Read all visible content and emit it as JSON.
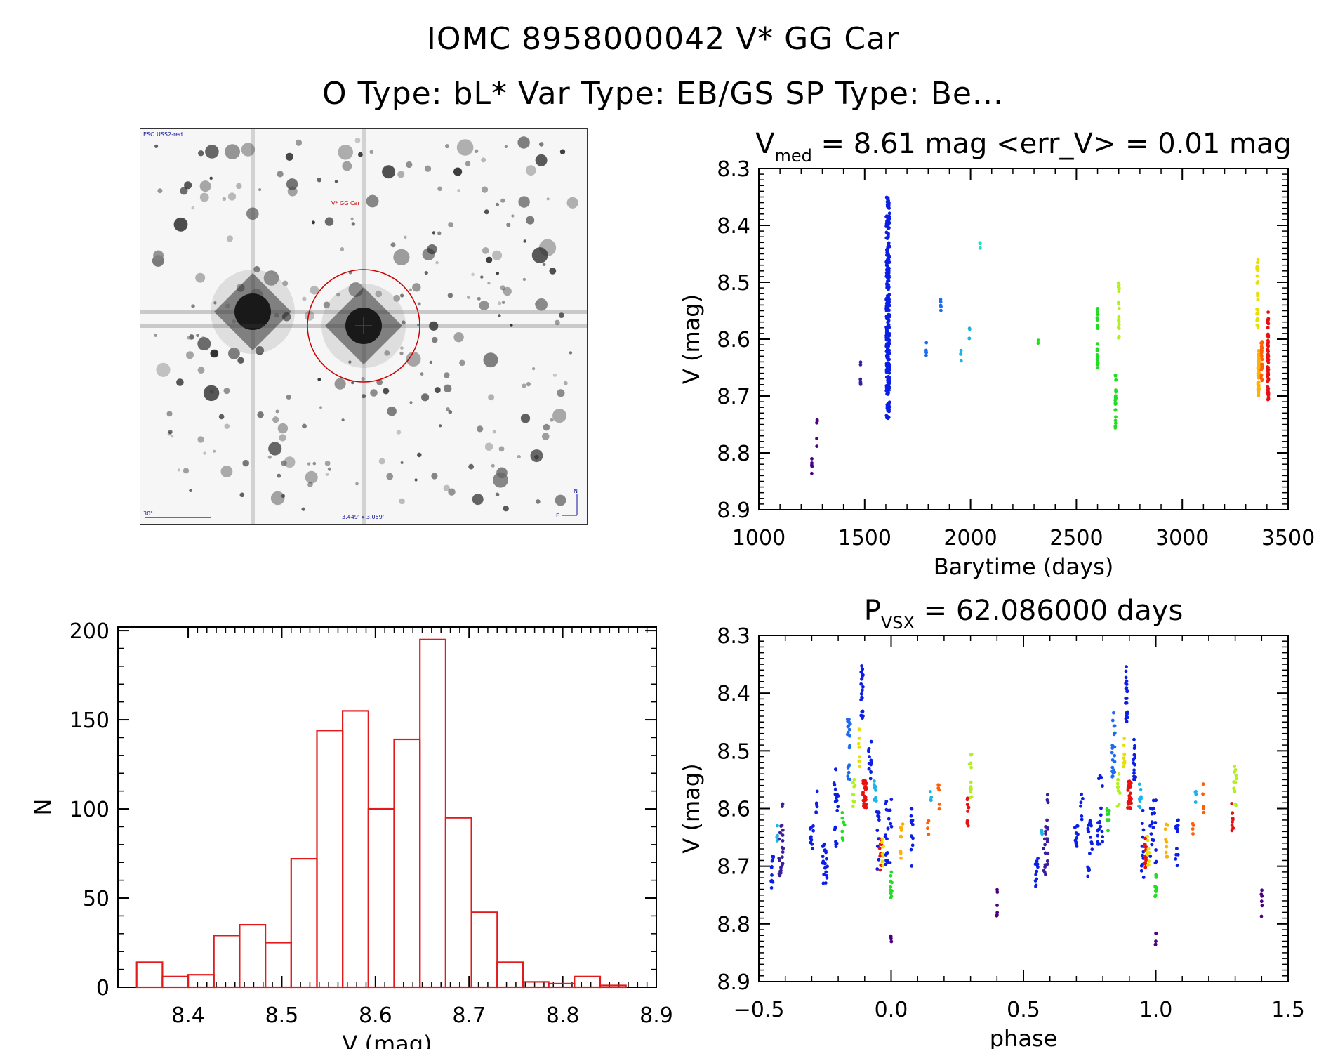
{
  "header": {
    "title_line1": "IOMC 8958000042   V* GG Car",
    "title_line2": "O Type: bL*  Var Type: EB/GS  SP Type: Be..."
  },
  "image_panel": {
    "survey_label": "ESO USS2-red",
    "target_label": "V* GG Car",
    "scale_label": "30\"",
    "fov_label": "3.449' x 3.059'",
    "north_label": "N",
    "east_label": "E",
    "circle_color": "#cc0000",
    "crosshair_color": "#aa00aa"
  },
  "colors": {
    "histogram": "#e31a1c",
    "axes": "#000000",
    "point_palette": [
      "#4b0082",
      "#3b1e9e",
      "#0a1ee6",
      "#1d6cf0",
      "#19b4e8",
      "#20e0c0",
      "#22dd22",
      "#b4f01e",
      "#e8e000",
      "#ffb000",
      "#ff6000",
      "#e81010"
    ]
  },
  "chart_data": [
    {
      "id": "lightcurve",
      "type": "scatter",
      "title_main": "V",
      "title_sub": "med",
      "title_rest": " = 8.61 mag <err_V> = 0.01 mag",
      "xlabel": "Barytime (days)",
      "ylabel": "V (mag)",
      "xlim": [
        1000,
        3500
      ],
      "ylim": [
        8.3,
        8.9
      ],
      "y_inverted": true,
      "xticks": [
        1000,
        1500,
        2000,
        2500,
        3000,
        3500
      ],
      "xtick_labels": [
        "1000",
        "1500",
        "2000",
        "2500",
        "3000",
        "3500"
      ],
      "yticks": [
        8.3,
        8.4,
        8.5,
        8.6,
        8.7,
        8.8,
        8.9
      ],
      "ytick_labels": [
        "8.3",
        "8.4",
        "8.5",
        "8.6",
        "8.7",
        "8.8",
        "8.9"
      ],
      "groups": [
        {
          "x": 1250,
          "y_range": [
            8.81,
            8.84
          ],
          "n": 5,
          "color": 0,
          "spread": 3
        },
        {
          "x": 1275,
          "y_range": [
            8.74,
            8.79
          ],
          "n": 6,
          "color": 0,
          "spread": 3
        },
        {
          "x": 1480,
          "y_range": [
            8.64,
            8.68
          ],
          "n": 6,
          "color": 1,
          "spread": 3
        },
        {
          "x": 1610,
          "y_range": [
            8.35,
            8.74
          ],
          "n": 260,
          "color": 2,
          "spread": 16
        },
        {
          "x": 1790,
          "y_range": [
            8.6,
            8.63
          ],
          "n": 5,
          "color": 3,
          "spread": 3
        },
        {
          "x": 1860,
          "y_range": [
            8.53,
            8.55
          ],
          "n": 5,
          "color": 3,
          "spread": 3
        },
        {
          "x": 1955,
          "y_range": [
            8.62,
            8.64
          ],
          "n": 4,
          "color": 4,
          "spread": 3
        },
        {
          "x": 1995,
          "y_range": [
            8.57,
            8.6
          ],
          "n": 4,
          "color": 4,
          "spread": 3
        },
        {
          "x": 2045,
          "y_range": [
            8.43,
            8.44
          ],
          "n": 3,
          "color": 5,
          "spread": 2
        },
        {
          "x": 2320,
          "y_range": [
            8.6,
            8.61
          ],
          "n": 2,
          "color": 6,
          "spread": 2
        },
        {
          "x": 2600,
          "y_range": [
            8.54,
            8.65
          ],
          "n": 24,
          "color": 6,
          "spread": 4
        },
        {
          "x": 2685,
          "y_range": [
            8.66,
            8.76
          ],
          "n": 22,
          "color": 6,
          "spread": 4
        },
        {
          "x": 2700,
          "y_range": [
            8.5,
            8.6
          ],
          "n": 24,
          "color": 7,
          "spread": 4
        },
        {
          "x": 3355,
          "y_range": [
            8.46,
            8.58
          ],
          "n": 30,
          "color": 8,
          "spread": 5
        },
        {
          "x": 3360,
          "y_range": [
            8.62,
            8.7
          ],
          "n": 60,
          "color": 9,
          "spread": 6
        },
        {
          "x": 3375,
          "y_range": [
            8.6,
            8.68
          ],
          "n": 25,
          "color": 10,
          "spread": 6
        },
        {
          "x": 3405,
          "y_range": [
            8.55,
            8.71
          ],
          "n": 60,
          "color": 11,
          "spread": 5
        }
      ]
    },
    {
      "id": "histogram",
      "type": "bar",
      "xlabel": "V (mag)",
      "ylabel": "N",
      "xlim": [
        8.325,
        8.9
      ],
      "ylim": [
        0,
        202
      ],
      "bin_width": 0.0275,
      "bin_starts": [
        8.345,
        8.3725,
        8.4,
        8.4275,
        8.455,
        8.4825,
        8.51,
        8.5375,
        8.565,
        8.5925,
        8.62,
        8.6475,
        8.675,
        8.7025,
        8.73,
        8.7575,
        8.785,
        8.8125,
        8.84
      ],
      "values": [
        14,
        6,
        7,
        29,
        35,
        25,
        72,
        144,
        155,
        100,
        139,
        195,
        95,
        42,
        14,
        3,
        2,
        6,
        1
      ],
      "xticks": [
        8.4,
        8.5,
        8.6,
        8.7,
        8.8,
        8.9
      ],
      "xtick_labels": [
        "8.4",
        "8.5",
        "8.6",
        "8.7",
        "8.8",
        "8.9"
      ],
      "yticks": [
        0,
        50,
        100,
        150,
        200
      ],
      "ytick_labels": [
        "0",
        "50",
        "100",
        "150",
        "200"
      ]
    },
    {
      "id": "phased",
      "type": "scatter",
      "title_main": "P",
      "title_sub": "VSX",
      "title_rest": " = 62.086000 days",
      "xlabel": "phase",
      "ylabel": "V (mag)",
      "xlim": [
        -0.5,
        1.5
      ],
      "ylim": [
        8.3,
        8.9
      ],
      "y_inverted": true,
      "xticks": [
        -0.5,
        0.0,
        0.5,
        1.0,
        1.5
      ],
      "xtick_labels": [
        "−0.5",
        "0.0",
        "0.5",
        "1.0",
        "1.5"
      ],
      "yticks": [
        8.3,
        8.4,
        8.5,
        8.6,
        8.7,
        8.8,
        8.9
      ],
      "ytick_labels": [
        "8.3",
        "8.4",
        "8.5",
        "8.6",
        "8.7",
        "8.8",
        "8.9"
      ],
      "repeat_offset": 1.0,
      "groups": [
        {
          "x": -0.45,
          "y_range": [
            8.68,
            8.74
          ],
          "n": 12,
          "color": 2,
          "spread": 0.01
        },
        {
          "x": -0.42,
          "y_range": [
            8.63,
            8.72
          ],
          "n": 12,
          "color": 1,
          "spread": 0.008
        },
        {
          "x": -0.41,
          "y_range": [
            8.57,
            8.7
          ],
          "n": 14,
          "color": 1,
          "spread": 0.006
        },
        {
          "x": -0.43,
          "y_range": [
            8.62,
            8.66
          ],
          "n": 4,
          "color": 4,
          "spread": 0.005
        },
        {
          "x": -0.3,
          "y_range": [
            8.63,
            8.68
          ],
          "n": 10,
          "color": 2,
          "spread": 0.012
        },
        {
          "x": -0.28,
          "y_range": [
            8.57,
            8.62
          ],
          "n": 6,
          "color": 2,
          "spread": 0.008
        },
        {
          "x": -0.25,
          "y_range": [
            8.62,
            8.73
          ],
          "n": 20,
          "color": 2,
          "spread": 0.02
        },
        {
          "x": -0.21,
          "y_range": [
            8.53,
            8.67
          ],
          "n": 20,
          "color": 2,
          "spread": 0.02
        },
        {
          "x": -0.18,
          "y_range": [
            8.6,
            8.66
          ],
          "n": 8,
          "color": 6,
          "spread": 0.01
        },
        {
          "x": -0.16,
          "y_range": [
            8.43,
            8.55
          ],
          "n": 20,
          "color": 3,
          "spread": 0.012
        },
        {
          "x": -0.14,
          "y_range": [
            8.54,
            8.6
          ],
          "n": 10,
          "color": 7,
          "spread": 0.01
        },
        {
          "x": -0.12,
          "y_range": [
            8.46,
            8.53
          ],
          "n": 8,
          "color": 8,
          "spread": 0.008
        },
        {
          "x": -0.11,
          "y_range": [
            8.35,
            8.45
          ],
          "n": 22,
          "color": 2,
          "spread": 0.008
        },
        {
          "x": -0.1,
          "y_range": [
            8.55,
            8.6
          ],
          "n": 30,
          "color": 11,
          "spread": 0.015
        },
        {
          "x": -0.08,
          "y_range": [
            8.48,
            8.55
          ],
          "n": 15,
          "color": 2,
          "spread": 0.01
        },
        {
          "x": -0.06,
          "y_range": [
            8.55,
            8.6
          ],
          "n": 8,
          "color": 4,
          "spread": 0.01
        },
        {
          "x": -0.05,
          "y_range": [
            8.6,
            8.72
          ],
          "n": 12,
          "color": 2,
          "spread": 0.01
        },
        {
          "x": -0.04,
          "y_range": [
            8.65,
            8.71
          ],
          "n": 14,
          "color": 11,
          "spread": 0.008
        },
        {
          "x": -0.03,
          "y_range": [
            8.64,
            8.7
          ],
          "n": 10,
          "color": 8,
          "spread": 0.01
        },
        {
          "x": -0.01,
          "y_range": [
            8.58,
            8.7
          ],
          "n": 22,
          "color": 2,
          "spread": 0.025
        },
        {
          "x": 0.0,
          "y_range": [
            8.71,
            8.76
          ],
          "n": 10,
          "color": 6,
          "spread": 0.006
        },
        {
          "x": 0.0,
          "y_range": [
            8.81,
            8.84
          ],
          "n": 5,
          "color": 0,
          "spread": 0.003
        },
        {
          "x": 0.04,
          "y_range": [
            8.62,
            8.69
          ],
          "n": 10,
          "color": 9,
          "spread": 0.01
        },
        {
          "x": 0.08,
          "y_range": [
            8.6,
            8.7
          ],
          "n": 12,
          "color": 2,
          "spread": 0.01
        },
        {
          "x": 0.15,
          "y_range": [
            8.57,
            8.59
          ],
          "n": 4,
          "color": 4,
          "spread": 0.004
        },
        {
          "x": 0.14,
          "y_range": [
            8.62,
            8.65
          ],
          "n": 4,
          "color": 10,
          "spread": 0.004
        },
        {
          "x": 0.18,
          "y_range": [
            8.55,
            8.61
          ],
          "n": 6,
          "color": 10,
          "spread": 0.004
        },
        {
          "x": 0.3,
          "y_range": [
            8.5,
            8.6
          ],
          "n": 14,
          "color": 7,
          "spread": 0.01
        },
        {
          "x": 0.29,
          "y_range": [
            8.58,
            8.64
          ],
          "n": 10,
          "color": 11,
          "spread": 0.006
        },
        {
          "x": 0.4,
          "y_range": [
            8.74,
            8.79
          ],
          "n": 6,
          "color": 0,
          "spread": 0.003
        }
      ]
    }
  ]
}
